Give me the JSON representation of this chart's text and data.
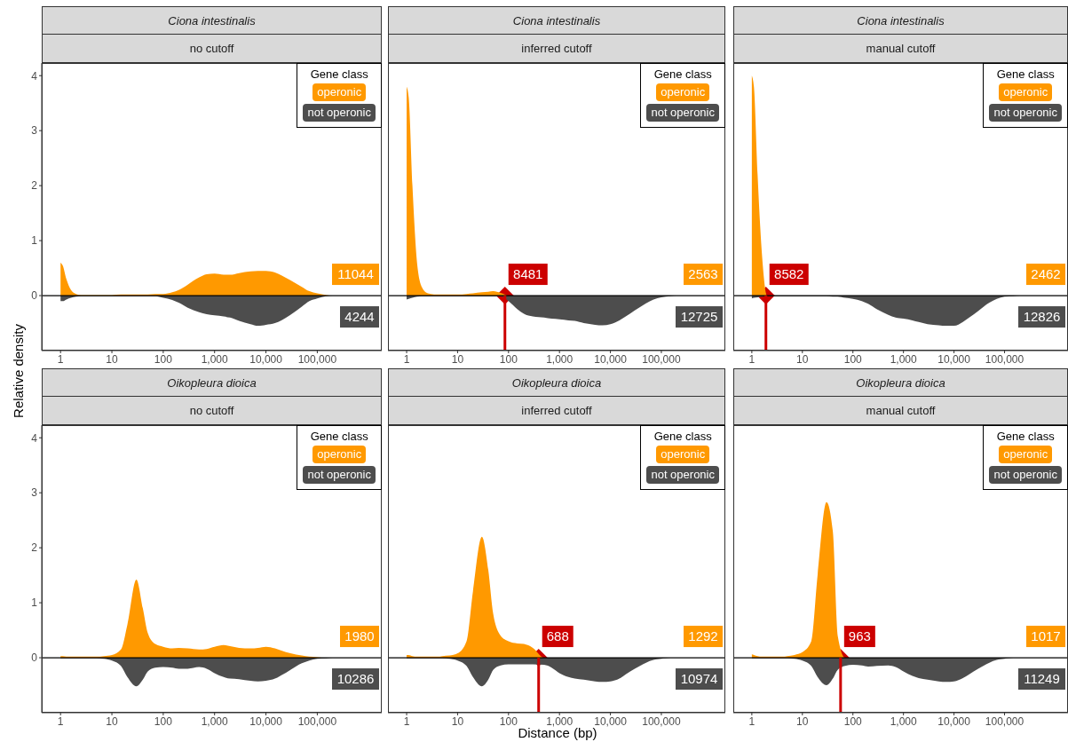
{
  "chart_data": [
    {
      "type": "area",
      "title": "Ciona intestinalis",
      "subtitle": "no cutoff",
      "ylabel": "Relative density",
      "log": "x",
      "legend": "top right",
      "legend_title": "Gene class",
      "x": [
        1,
        1.1,
        1.3,
        1.6,
        2,
        2.5,
        3,
        4,
        5,
        7,
        10,
        15,
        20,
        30,
        40,
        50,
        70,
        100,
        150,
        200,
        300,
        500,
        700,
        1000,
        1500,
        2000,
        3000,
        5000,
        7000,
        10000,
        15000,
        20000,
        30000,
        50000,
        70000,
        100000,
        150000,
        200000,
        300000
      ],
      "series": [
        {
          "name": "operonic",
          "color": "#ff9900",
          "values": [
            0.6,
            0.55,
            0.3,
            0.1,
            0.03,
            0.01,
            0.01,
            0.01,
            0.01,
            0.01,
            0.01,
            0.02,
            0.02,
            0.02,
            0.02,
            0.02,
            0.03,
            0.03,
            0.06,
            0.1,
            0.2,
            0.33,
            0.39,
            0.4,
            0.38,
            0.38,
            0.41,
            0.44,
            0.45,
            0.45,
            0.42,
            0.37,
            0.28,
            0.16,
            0.08,
            0.04,
            0.01,
            0,
            0
          ]
        },
        {
          "name": "not operonic",
          "color": "#4d4d4d",
          "values": [
            -0.1,
            -0.1,
            -0.07,
            -0.04,
            -0.02,
            -0.01,
            -0.01,
            -0.01,
            -0.01,
            -0.01,
            -0.01,
            -0.01,
            -0.01,
            -0.01,
            -0.01,
            -0.01,
            -0.01,
            -0.04,
            -0.08,
            -0.13,
            -0.22,
            -0.3,
            -0.34,
            -0.36,
            -0.38,
            -0.4,
            -0.46,
            -0.52,
            -0.55,
            -0.53,
            -0.5,
            -0.45,
            -0.35,
            -0.2,
            -0.1,
            -0.05,
            -0.01,
            0,
            0
          ]
        }
      ],
      "xlim": [
        0.43,
        1800000
      ],
      "ylim": [
        -1.0,
        4.23
      ],
      "xticks": [
        1,
        10,
        100,
        {
          "value": 1000,
          "label": "1,000"
        },
        {
          "value": 10000,
          "label": "10,000"
        },
        {
          "value": 100000,
          "label": "100,000"
        }
      ],
      "yticks": [
        0,
        1,
        2,
        3,
        4
      ],
      "annotations": [
        "11044",
        "4244"
      ],
      "ref_lines": [
        {
          "axis": "y",
          "value": 0,
          "color": "#000000"
        }
      ]
    },
    {
      "type": "area",
      "title": "Ciona intestinalis",
      "subtitle": "inferred cutoff",
      "log": "x",
      "legend": "top right",
      "legend_title": "Gene class",
      "tick_labels": "x",
      "x": [
        1,
        1.1,
        1.3,
        1.6,
        2,
        2.5,
        3,
        4,
        5,
        7,
        10,
        15,
        20,
        30,
        40,
        50,
        70,
        100,
        150,
        200,
        300,
        500,
        700,
        1000,
        1500,
        2000,
        3000,
        5000,
        7000,
        10000,
        15000,
        20000,
        30000,
        50000,
        70000,
        100000,
        150000,
        200000,
        300000
      ],
      "series": [
        {
          "name": "operonic",
          "color": "#ff9900",
          "values": [
            3.8,
            3.6,
            2.0,
            0.6,
            0.15,
            0.05,
            0.03,
            0.02,
            0.02,
            0.02,
            0.02,
            0.03,
            0.04,
            0.06,
            0.07,
            0.08,
            0.05,
            0,
            0,
            0,
            0,
            0,
            0,
            0,
            0,
            0,
            0,
            0,
            0,
            0,
            0,
            0,
            0,
            0,
            0,
            0,
            0,
            0,
            0
          ]
        },
        {
          "name": "not operonic",
          "color": "#4d4d4d",
          "values": [
            -0.07,
            -0.06,
            -0.04,
            -0.02,
            -0.01,
            -0.01,
            -0.01,
            -0.01,
            -0.01,
            -0.01,
            -0.01,
            -0.01,
            -0.01,
            -0.01,
            -0.01,
            -0.01,
            -0.01,
            -0.1,
            -0.25,
            -0.33,
            -0.38,
            -0.4,
            -0.42,
            -0.43,
            -0.45,
            -0.46,
            -0.5,
            -0.53,
            -0.54,
            -0.52,
            -0.45,
            -0.38,
            -0.27,
            -0.14,
            -0.07,
            -0.03,
            -0.01,
            0,
            0
          ]
        }
      ],
      "xlim": [
        0.43,
        1800000
      ],
      "ylim": [
        -1.0,
        4.23
      ],
      "xticks": [
        1,
        10,
        100,
        {
          "value": 1000,
          "label": "1,000"
        },
        {
          "value": 10000,
          "label": "10,000"
        },
        {
          "value": 100000,
          "label": "100,000"
        }
      ],
      "yticks": [
        0,
        1,
        2,
        3,
        4
      ],
      "annotations": [
        "2563",
        "12725",
        {
          "text": "8481",
          "x": 85,
          "y": 0
        }
      ],
      "ref_lines": [
        {
          "axis": "y",
          "value": 0,
          "color": "#000000"
        },
        {
          "axis": "x",
          "value": 85,
          "color": "#cc0000"
        }
      ]
    },
    {
      "type": "area",
      "title": "Ciona intestinalis",
      "subtitle": "manual cutoff",
      "log": "x",
      "legend": "top right",
      "legend_title": "Gene class",
      "tick_labels": "x",
      "x": [
        1,
        1.1,
        1.3,
        1.6,
        2,
        2.5,
        3,
        4,
        5,
        7,
        10,
        15,
        20,
        30,
        40,
        50,
        70,
        100,
        150,
        200,
        300,
        500,
        700,
        1000,
        1500,
        2000,
        3000,
        5000,
        7000,
        10000,
        15000,
        20000,
        30000,
        50000,
        70000,
        100000,
        150000,
        200000,
        300000
      ],
      "series": [
        {
          "name": "operonic",
          "color": "#ff9900",
          "values": [
            4.0,
            3.8,
            2.2,
            0.7,
            0,
            0,
            0,
            0,
            0,
            0,
            0,
            0,
            0,
            0,
            0,
            0,
            0,
            0,
            0,
            0,
            0,
            0,
            0,
            0,
            0,
            0,
            0,
            0,
            0,
            0,
            0,
            0,
            0,
            0,
            0,
            0,
            0,
            0,
            0
          ]
        },
        {
          "name": "not operonic",
          "color": "#4d4d4d",
          "values": [
            -0.05,
            -0.04,
            -0.03,
            -0.02,
            -0.01,
            -0.01,
            -0.01,
            -0.01,
            -0.01,
            -0.01,
            -0.01,
            -0.01,
            -0.01,
            -0.01,
            -0.02,
            -0.02,
            -0.04,
            -0.06,
            -0.1,
            -0.15,
            -0.25,
            -0.35,
            -0.4,
            -0.42,
            -0.45,
            -0.48,
            -0.52,
            -0.54,
            -0.55,
            -0.55,
            -0.48,
            -0.4,
            -0.28,
            -0.13,
            -0.06,
            -0.02,
            -0.01,
            0,
            0
          ]
        }
      ],
      "xlim": [
        0.43,
        1800000
      ],
      "ylim": [
        -1.0,
        4.23
      ],
      "xticks": [
        1,
        10,
        100,
        {
          "value": 1000,
          "label": "1,000"
        },
        {
          "value": 10000,
          "label": "10,000"
        },
        {
          "value": 100000,
          "label": "100,000"
        }
      ],
      "yticks": [
        0,
        1,
        2,
        3,
        4
      ],
      "annotations": [
        "2462",
        "12826",
        {
          "text": "8582",
          "x": 1.9,
          "y": 0
        }
      ],
      "ref_lines": [
        {
          "axis": "y",
          "value": 0,
          "color": "#000000"
        },
        {
          "axis": "x",
          "value": 1.9,
          "color": "#cc0000"
        }
      ]
    },
    {
      "type": "area",
      "title": "Oikopleura dioica",
      "subtitle": "no cutoff",
      "log": "x",
      "legend": "top right",
      "legend_title": "Gene class",
      "x": [
        1,
        1.1,
        1.3,
        1.6,
        2,
        2.5,
        3,
        4,
        5,
        7,
        10,
        15,
        20,
        30,
        40,
        50,
        70,
        100,
        150,
        200,
        300,
        500,
        700,
        1000,
        1500,
        2000,
        3000,
        5000,
        7000,
        10000,
        15000,
        20000,
        30000,
        50000,
        70000,
        100000,
        150000,
        200000,
        300000
      ],
      "series": [
        {
          "name": "operonic",
          "color": "#ff9900",
          "values": [
            0.03,
            0.03,
            0.02,
            0.02,
            0.02,
            0.02,
            0.02,
            0.02,
            0.02,
            0.03,
            0.05,
            0.15,
            0.6,
            1.42,
            0.9,
            0.45,
            0.25,
            0.2,
            0.17,
            0.18,
            0.17,
            0.15,
            0.16,
            0.2,
            0.23,
            0.21,
            0.18,
            0.17,
            0.18,
            0.2,
            0.17,
            0.13,
            0.08,
            0.04,
            0.02,
            0.01,
            0,
            0,
            0
          ]
        },
        {
          "name": "not operonic",
          "color": "#4d4d4d",
          "values": [
            -0.01,
            -0.01,
            -0.01,
            -0.01,
            -0.01,
            -0.01,
            -0.01,
            -0.01,
            -0.01,
            -0.02,
            -0.05,
            -0.15,
            -0.35,
            -0.52,
            -0.4,
            -0.25,
            -0.18,
            -0.17,
            -0.18,
            -0.2,
            -0.2,
            -0.17,
            -0.2,
            -0.28,
            -0.35,
            -0.38,
            -0.39,
            -0.42,
            -0.43,
            -0.42,
            -0.38,
            -0.32,
            -0.22,
            -0.1,
            -0.05,
            -0.02,
            -0.01,
            0,
            0
          ]
        }
      ],
      "xlim": [
        0.43,
        1800000
      ],
      "ylim": [
        -1.0,
        4.23
      ],
      "xticks": [
        1,
        10,
        100,
        {
          "value": 1000,
          "label": "1,000"
        },
        {
          "value": 10000,
          "label": "10,000"
        },
        {
          "value": 100000,
          "label": "100,000"
        }
      ],
      "yticks": [
        0,
        1,
        2,
        3,
        4
      ],
      "annotations": [
        "1980",
        "10286"
      ],
      "ref_lines": [
        {
          "axis": "y",
          "value": 0,
          "color": "#000000"
        }
      ]
    },
    {
      "type": "area",
      "title": "Oikopleura dioica",
      "subtitle": "inferred cutoff",
      "xlabel": "Distance (bp)",
      "log": "x",
      "legend": "top right",
      "legend_title": "Gene class",
      "tick_labels": "x",
      "x": [
        1,
        1.1,
        1.3,
        1.6,
        2,
        2.5,
        3,
        4,
        5,
        7,
        10,
        15,
        20,
        30,
        40,
        50,
        70,
        100,
        150,
        200,
        300,
        500,
        700,
        1000,
        1500,
        2000,
        3000,
        5000,
        7000,
        10000,
        15000,
        20000,
        30000,
        50000,
        70000,
        100000,
        150000,
        200000,
        300000
      ],
      "series": [
        {
          "name": "operonic",
          "color": "#ff9900",
          "values": [
            0.05,
            0.05,
            0.03,
            0.02,
            0.02,
            0.02,
            0.02,
            0.02,
            0.03,
            0.04,
            0.08,
            0.3,
            1.2,
            2.2,
            1.6,
            0.8,
            0.4,
            0.3,
            0.26,
            0.25,
            0.18,
            0,
            0,
            0,
            0,
            0,
            0,
            0,
            0,
            0,
            0,
            0,
            0,
            0,
            0,
            0,
            0,
            0,
            0
          ]
        },
        {
          "name": "not operonic",
          "color": "#4d4d4d",
          "values": [
            -0.01,
            -0.01,
            -0.01,
            -0.01,
            -0.01,
            -0.01,
            -0.01,
            -0.01,
            -0.01,
            -0.02,
            -0.05,
            -0.15,
            -0.35,
            -0.52,
            -0.4,
            -0.22,
            -0.14,
            -0.12,
            -0.12,
            -0.12,
            -0.12,
            -0.13,
            -0.18,
            -0.28,
            -0.35,
            -0.38,
            -0.4,
            -0.43,
            -0.44,
            -0.43,
            -0.38,
            -0.3,
            -0.2,
            -0.09,
            -0.04,
            -0.02,
            0,
            0,
            0
          ]
        }
      ],
      "xlim": [
        0.43,
        1800000
      ],
      "ylim": [
        -1.0,
        4.23
      ],
      "xticks": [
        1,
        10,
        100,
        {
          "value": 1000,
          "label": "1,000"
        },
        {
          "value": 10000,
          "label": "10,000"
        },
        {
          "value": 100000,
          "label": "100,000"
        }
      ],
      "yticks": [
        0,
        1,
        2,
        3,
        4
      ],
      "annotations": [
        "1292",
        "10974",
        {
          "text": "688",
          "x": 390,
          "y": 0
        }
      ],
      "ref_lines": [
        {
          "axis": "y",
          "value": 0,
          "color": "#000000"
        },
        {
          "axis": "x",
          "value": 390,
          "color": "#cc0000"
        }
      ]
    },
    {
      "type": "area",
      "title": "Oikopleura dioica",
      "subtitle": "manual cutoff",
      "log": "x",
      "legend": "top right",
      "legend_title": "Gene class",
      "tick_labels": "x",
      "x": [
        1,
        1.1,
        1.3,
        1.6,
        2,
        2.5,
        3,
        4,
        5,
        7,
        10,
        15,
        20,
        30,
        40,
        50,
        70,
        100,
        150,
        200,
        300,
        500,
        700,
        1000,
        1500,
        2000,
        3000,
        5000,
        7000,
        10000,
        15000,
        20000,
        30000,
        50000,
        70000,
        100000,
        150000,
        200000,
        300000
      ],
      "series": [
        {
          "name": "operonic",
          "color": "#ff9900",
          "values": [
            0.06,
            0.05,
            0.03,
            0.02,
            0.02,
            0.02,
            0.02,
            0.02,
            0.03,
            0.05,
            0.1,
            0.3,
            1.5,
            2.83,
            2.3,
            0.4,
            0,
            0,
            0,
            0,
            0,
            0,
            0,
            0,
            0,
            0,
            0,
            0,
            0,
            0,
            0,
            0,
            0,
            0,
            0,
            0,
            0,
            0,
            0
          ]
        },
        {
          "name": "not operonic",
          "color": "#4d4d4d",
          "values": [
            -0.01,
            -0.01,
            -0.01,
            -0.01,
            -0.01,
            -0.01,
            -0.01,
            -0.01,
            -0.01,
            -0.02,
            -0.05,
            -0.15,
            -0.35,
            -0.5,
            -0.38,
            -0.22,
            -0.15,
            -0.13,
            -0.14,
            -0.16,
            -0.15,
            -0.14,
            -0.17,
            -0.25,
            -0.33,
            -0.37,
            -0.4,
            -0.43,
            -0.44,
            -0.43,
            -0.37,
            -0.3,
            -0.2,
            -0.09,
            -0.04,
            -0.02,
            0,
            0,
            0
          ]
        }
      ],
      "xlim": [
        0.43,
        1800000
      ],
      "ylim": [
        -1.0,
        4.23
      ],
      "xticks": [
        1,
        10,
        100,
        {
          "value": 1000,
          "label": "1,000"
        },
        {
          "value": 10000,
          "label": "10,000"
        },
        {
          "value": 100000,
          "label": "100,000"
        }
      ],
      "yticks": [
        0,
        1,
        2,
        3,
        4
      ],
      "annotations": [
        "1017",
        "11249",
        {
          "text": "963",
          "x": 57,
          "y": 0
        }
      ],
      "ref_lines": [
        {
          "axis": "y",
          "value": 0,
          "color": "#000000"
        },
        {
          "axis": "x",
          "value": 57,
          "color": "#cc0000"
        }
      ]
    }
  ]
}
